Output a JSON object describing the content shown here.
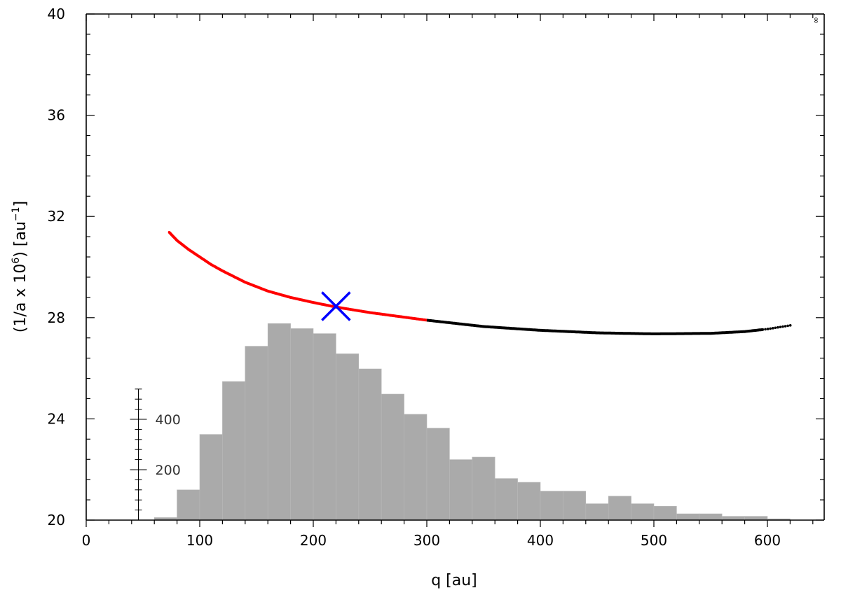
{
  "chart_data": {
    "type": "scatter",
    "xlabel": "q [au]",
    "ylabel_parts": {
      "open": "(1/a x 10",
      "exp": "6",
      "mid": ") [au",
      "unit_exp": "−1",
      "close": "]"
    },
    "corner_mark": "∞",
    "xlim": [
      0,
      650
    ],
    "ylim": [
      20,
      40
    ],
    "x_ticks": [
      0,
      100,
      200,
      300,
      400,
      500,
      600
    ],
    "y_ticks": [
      20,
      24,
      28,
      32,
      36,
      40
    ],
    "grid": false,
    "curve": {
      "color_red": "#ff0000",
      "color_black": "#000000",
      "red_segment_x_range": [
        73,
        300
      ],
      "black_segment_x_range": [
        300,
        621
      ],
      "points": [
        [
          73,
          31.38
        ],
        [
          80,
          31.05
        ],
        [
          90,
          30.7
        ],
        [
          100,
          30.4
        ],
        [
          110,
          30.1
        ],
        [
          120,
          29.85
        ],
        [
          140,
          29.4
        ],
        [
          160,
          29.05
        ],
        [
          180,
          28.8
        ],
        [
          200,
          28.6
        ],
        [
          220,
          28.42
        ],
        [
          250,
          28.2
        ],
        [
          280,
          28.02
        ],
        [
          300,
          27.9
        ],
        [
          320,
          27.8
        ],
        [
          350,
          27.65
        ],
        [
          400,
          27.5
        ],
        [
          450,
          27.4
        ],
        [
          500,
          27.36
        ],
        [
          550,
          27.38
        ],
        [
          580,
          27.45
        ],
        [
          600,
          27.55
        ],
        [
          621,
          27.7
        ]
      ]
    },
    "marker": {
      "x": 220,
      "y": 28.45,
      "symbol": "x",
      "color": "#0000ff"
    },
    "histogram": {
      "color": "#aaaaaa",
      "bin_width": 20,
      "bin_starts": [
        60,
        80,
        100,
        120,
        140,
        160,
        180,
        200,
        220,
        240,
        260,
        280,
        300,
        320,
        340,
        360,
        380,
        400,
        420,
        440,
        460,
        480,
        500,
        520,
        540,
        560,
        580,
        600
      ],
      "counts": [
        10,
        120,
        340,
        550,
        690,
        780,
        760,
        740,
        660,
        600,
        500,
        420,
        365,
        240,
        250,
        165,
        150,
        115,
        115,
        65,
        95,
        65,
        55,
        25,
        25,
        15,
        15,
        5
      ],
      "count_axis": {
        "x": 46,
        "ticks": [
          200,
          400
        ],
        "minor_step": 40,
        "max": 520
      }
    }
  }
}
